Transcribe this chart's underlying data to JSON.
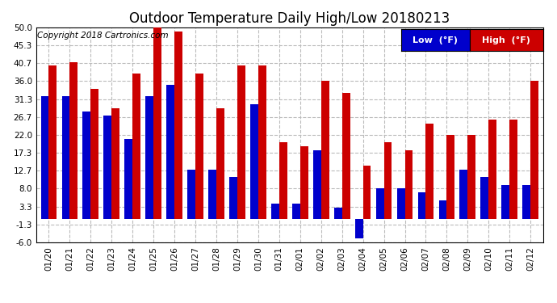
{
  "title": "Outdoor Temperature Daily High/Low 20180213",
  "copyright": "Copyright 2018 Cartronics.com",
  "legend_labels": [
    "Low  (°F)",
    "High  (°F)"
  ],
  "dates": [
    "01/20",
    "01/21",
    "01/22",
    "01/23",
    "01/24",
    "01/25",
    "01/26",
    "01/27",
    "01/28",
    "01/29",
    "01/30",
    "01/31",
    "02/01",
    "02/02",
    "02/03",
    "02/04",
    "02/05",
    "02/06",
    "02/07",
    "02/08",
    "02/09",
    "02/10",
    "02/11",
    "02/12"
  ],
  "lows": [
    32,
    32,
    28,
    27,
    21,
    32,
    35,
    13,
    13,
    11,
    30,
    4,
    4,
    18,
    3,
    -5,
    8,
    8,
    7,
    5,
    13,
    11,
    9,
    9
  ],
  "highs": [
    40,
    41,
    34,
    29,
    38,
    52,
    49,
    38,
    29,
    40,
    40,
    20,
    19,
    36,
    33,
    14,
    20,
    18,
    25,
    22,
    22,
    26,
    26,
    36
  ],
  "ylim": [
    -6.0,
    50.0
  ],
  "yticks": [
    -6.0,
    -1.3,
    3.3,
    8.0,
    12.7,
    17.3,
    22.0,
    26.7,
    31.3,
    36.0,
    40.7,
    45.3,
    50.0
  ],
  "bar_color_low": "#0000cc",
  "bar_color_high": "#cc0000",
  "bg_color": "#ffffff",
  "grid_color": "#bbbbbb",
  "title_fontsize": 12,
  "copyright_fontsize": 7.5,
  "tick_fontsize": 7.5,
  "bar_width": 0.38
}
